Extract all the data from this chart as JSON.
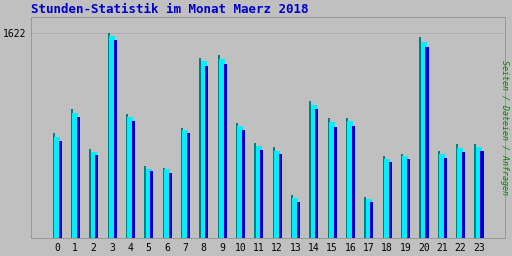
{
  "title": "Stunden-Statistik im Monat Maerz 2018",
  "ylabel_right": "Seiten / Dateien / Anfragen",
  "xlabel_values": [
    0,
    1,
    2,
    3,
    4,
    5,
    6,
    7,
    8,
    9,
    10,
    11,
    12,
    13,
    14,
    15,
    16,
    17,
    18,
    19,
    20,
    21,
    22,
    23
  ],
  "ytick_label": "1622",
  "background_color": "#c0c0c0",
  "plot_bg_color": "#c0c0c0",
  "bar_width": 0.3,
  "title_color": "#0000cc",
  "title_fontsize": 9,
  "ylabel_color": "#008800",
  "grid_color": "#b0b0b0",
  "series": {
    "seiten": {
      "color": "#008080",
      "values": [
        830,
        1020,
        710,
        1622,
        980,
        570,
        560,
        875,
        1430,
        1450,
        915,
        755,
        720,
        340,
        1085,
        950,
        955,
        330,
        655,
        670,
        1590,
        695,
        745,
        745
      ]
    },
    "dateien": {
      "color": "#00eeff",
      "values": [
        800,
        990,
        680,
        1600,
        960,
        550,
        545,
        855,
        1400,
        1420,
        890,
        730,
        695,
        320,
        1055,
        920,
        925,
        310,
        630,
        650,
        1555,
        665,
        715,
        720
      ]
    },
    "anfragen": {
      "color": "#0000cc",
      "values": [
        770,
        960,
        660,
        1570,
        930,
        530,
        520,
        830,
        1360,
        1380,
        860,
        700,
        665,
        290,
        1020,
        885,
        890,
        290,
        605,
        625,
        1515,
        635,
        685,
        695
      ]
    }
  }
}
